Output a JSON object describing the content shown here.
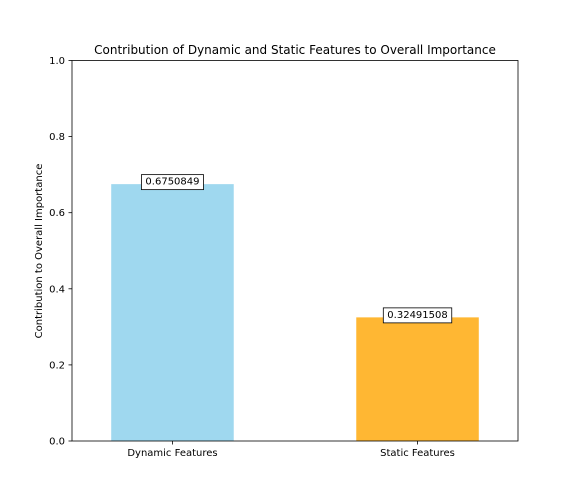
{
  "chart_data": {
    "type": "bar",
    "title": "Contribution of Dynamic and Static Features to Overall Importance",
    "xlabel": "",
    "ylabel": "Contribution to Overall Importance",
    "categories": [
      "Dynamic Features",
      "Static Features"
    ],
    "values": [
      0.6750849,
      0.32491508
    ],
    "data_labels": [
      "0.6750849",
      "0.32491508"
    ],
    "bar_colors": [
      "#87ceeb",
      "#ffa500"
    ],
    "bar_alpha": 0.8,
    "ylim": [
      0,
      1.0
    ],
    "yticks": [
      "0.0",
      "0.2",
      "0.4",
      "0.6",
      "0.8",
      "1.0"
    ],
    "grid": false,
    "legend": "none"
  }
}
